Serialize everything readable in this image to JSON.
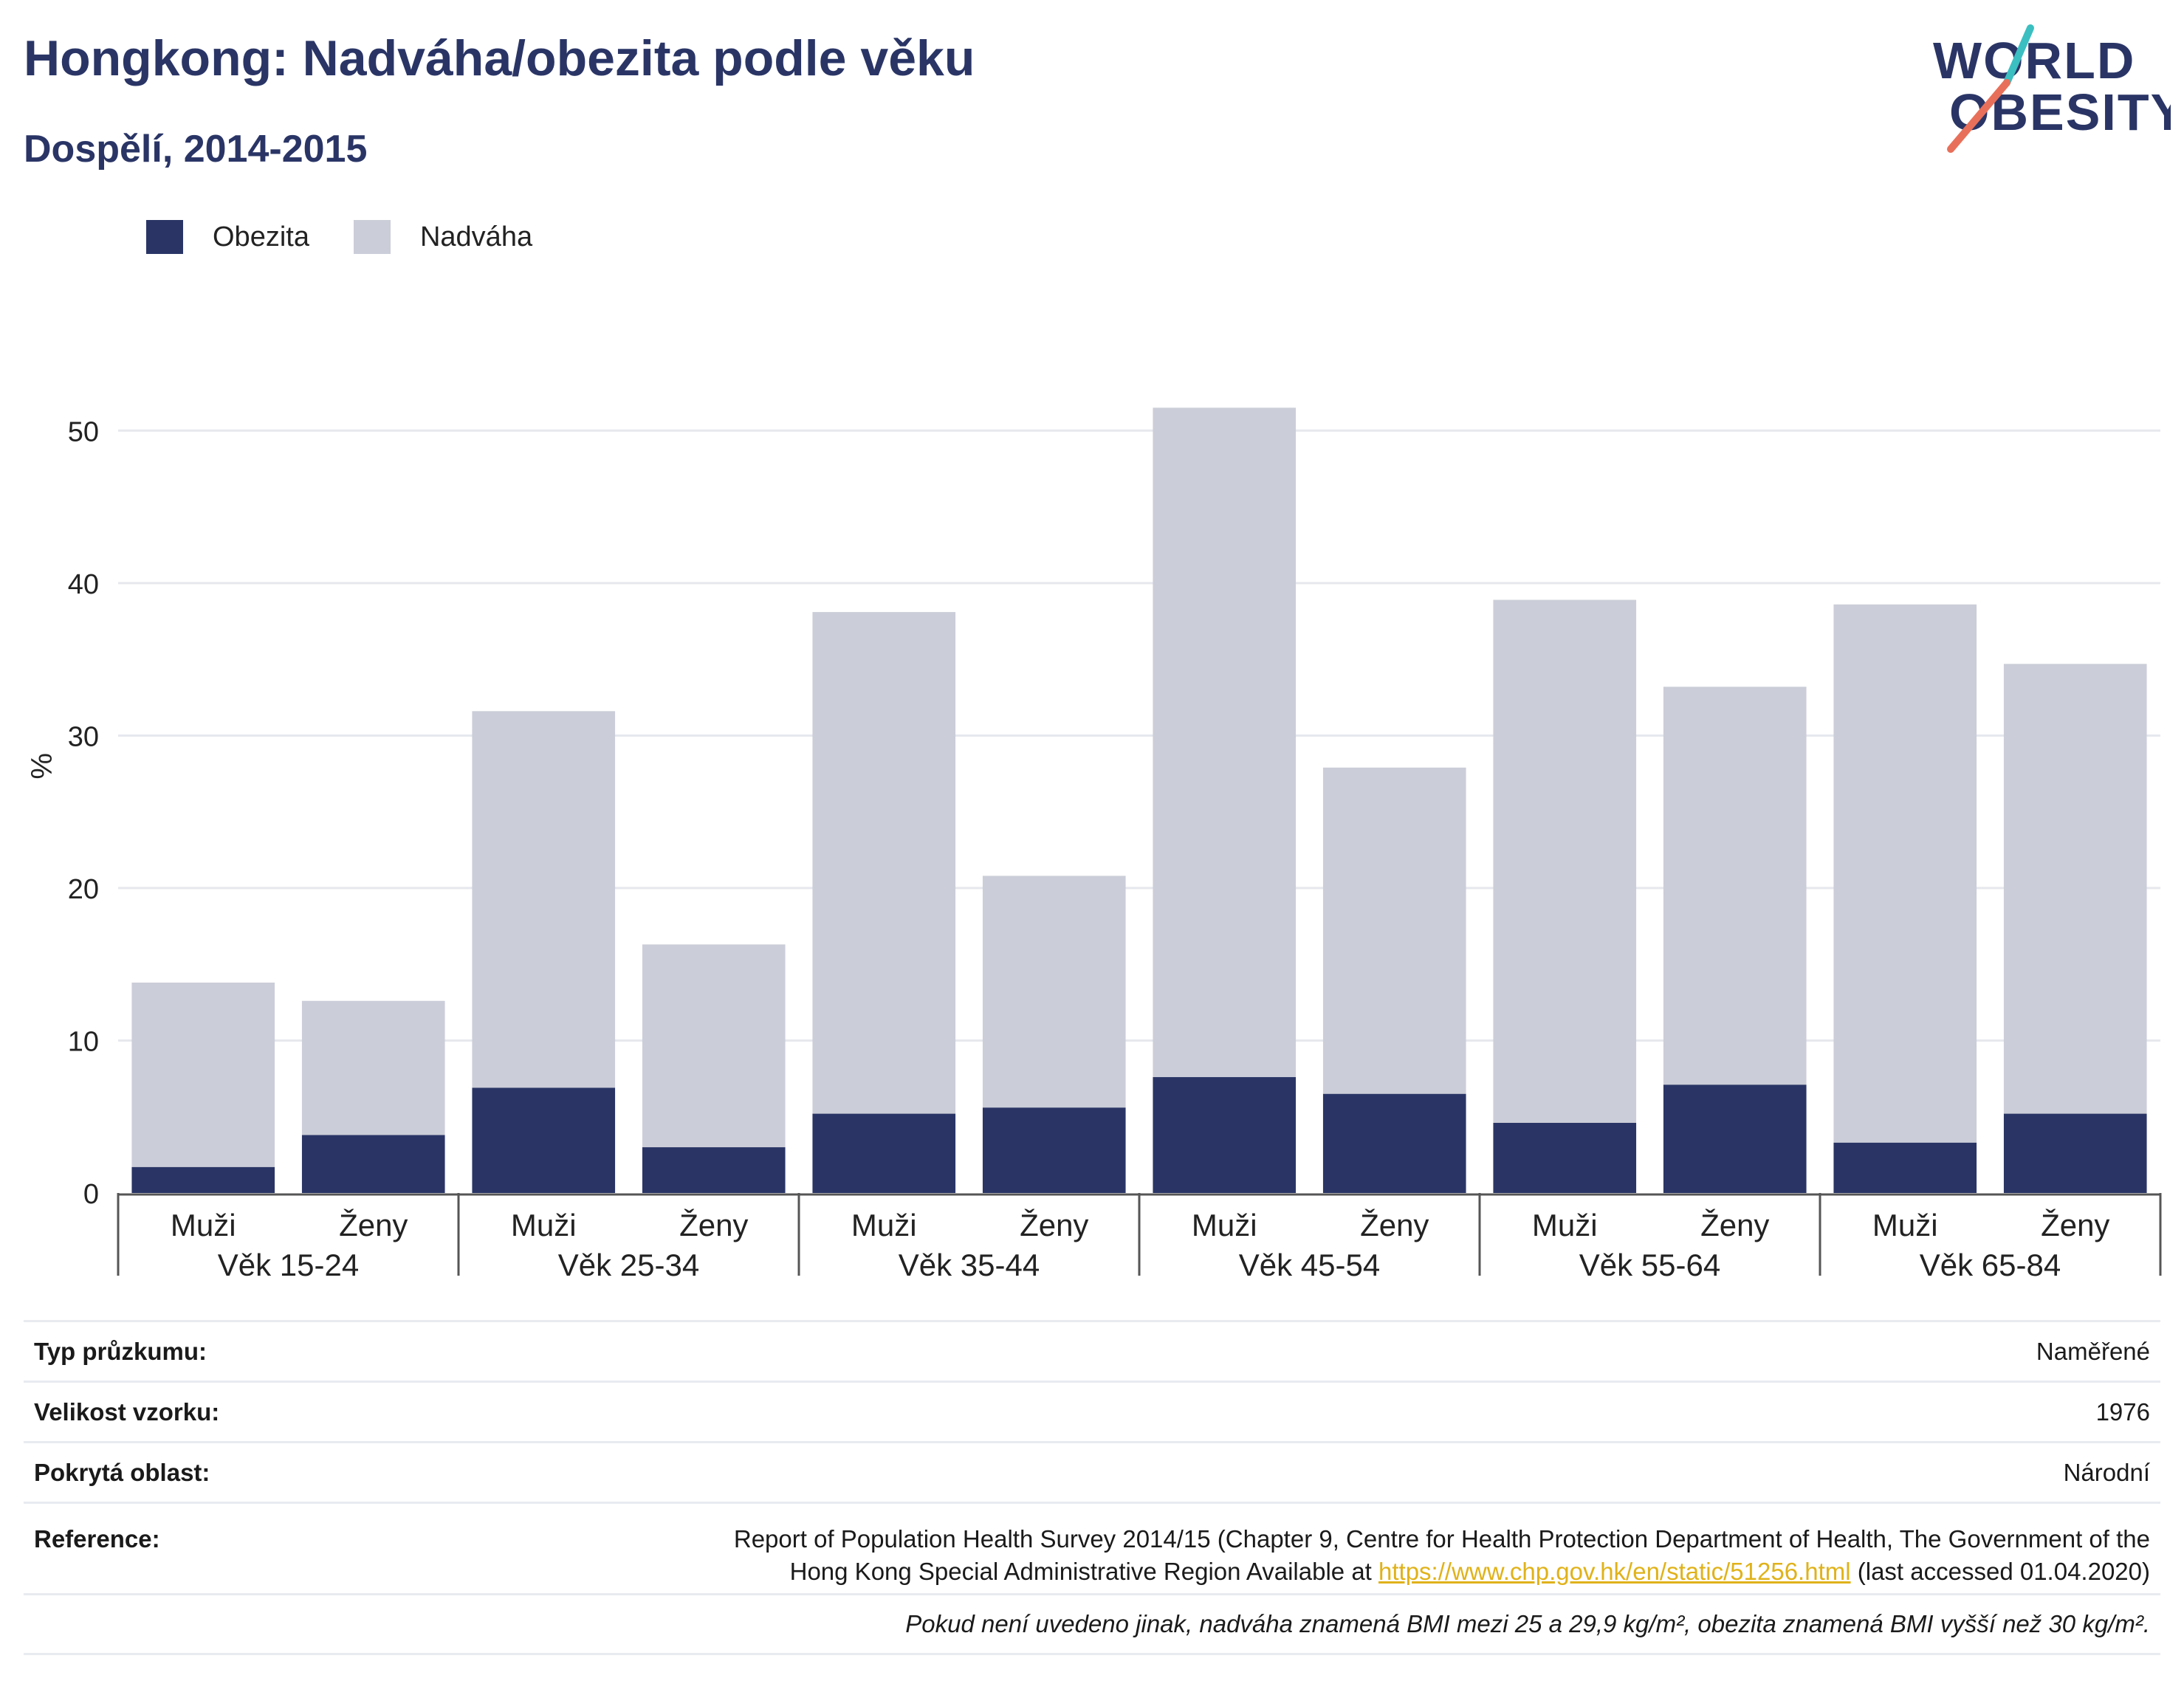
{
  "title": "Hongkong: Nadváha/obezita podle věku",
  "subtitle": "Dospělí, 2014-2015",
  "logo": {
    "line1": "WORLD",
    "line2": "OBESITY",
    "accent_colors": [
      "#3bbfc1",
      "#e8705a"
    ]
  },
  "legend": [
    {
      "label": "Obezita",
      "color": "#2a3566"
    },
    {
      "label": "Nadváha",
      "color": "#cbcdd8"
    }
  ],
  "chart_data": {
    "type": "bar",
    "stacked": true,
    "ylabel": "%",
    "ylim": [
      0,
      55
    ],
    "yticks": [
      0,
      10,
      20,
      30,
      40,
      50
    ],
    "grid": true,
    "groups": [
      "Věk 15-24",
      "Věk 25-34",
      "Věk 35-44",
      "Věk 45-54",
      "Věk 55-64",
      "Věk 65-84"
    ],
    "categories": [
      "Muži",
      "Ženy",
      "Muži",
      "Ženy",
      "Muži",
      "Ženy",
      "Muži",
      "Ženy",
      "Muži",
      "Ženy",
      "Muži",
      "Ženy"
    ],
    "series": [
      {
        "name": "Obezita",
        "color": "#2a3566",
        "values": [
          1.7,
          3.8,
          6.9,
          3.0,
          5.2,
          5.6,
          7.6,
          6.5,
          4.6,
          7.1,
          3.3,
          5.2
        ]
      },
      {
        "name": "Nadváha",
        "color": "#cbcdd8",
        "values": [
          12.1,
          8.8,
          24.7,
          13.3,
          32.9,
          15.2,
          43.9,
          21.4,
          34.3,
          26.1,
          35.3,
          29.5
        ]
      }
    ],
    "totals": [
      13.8,
      12.6,
      31.6,
      16.3,
      38.1,
      20.8,
      51.5,
      27.9,
      38.9,
      33.2,
      38.6,
      34.7
    ]
  },
  "info": {
    "survey_type_label": "Typ průzkumu:",
    "survey_type_value": "Naměřené",
    "sample_size_label": "Velikost vzorku:",
    "sample_size_value": "1976",
    "coverage_label": "Pokrytá oblast:",
    "coverage_value": "Národní",
    "reference_label": "Reference:",
    "reference_line1": "Report of Population Health Survey 2014/15 (Chapter 9, Centre for Health Protection Department of Health, The Government of the",
    "reference_line2_pre": "Hong Kong Special Administrative Region Available at ",
    "reference_link": "https://www.chp.gov.hk/en/static/51256.html",
    "reference_line2_post": " (last accessed 01.04.2020)",
    "footnote": "Pokud není uvedeno jinak, nadváha znamená BMI mezi 25 a 29,9 kg/m², obezita znamená BMI vyšší než 30 kg/m²."
  }
}
